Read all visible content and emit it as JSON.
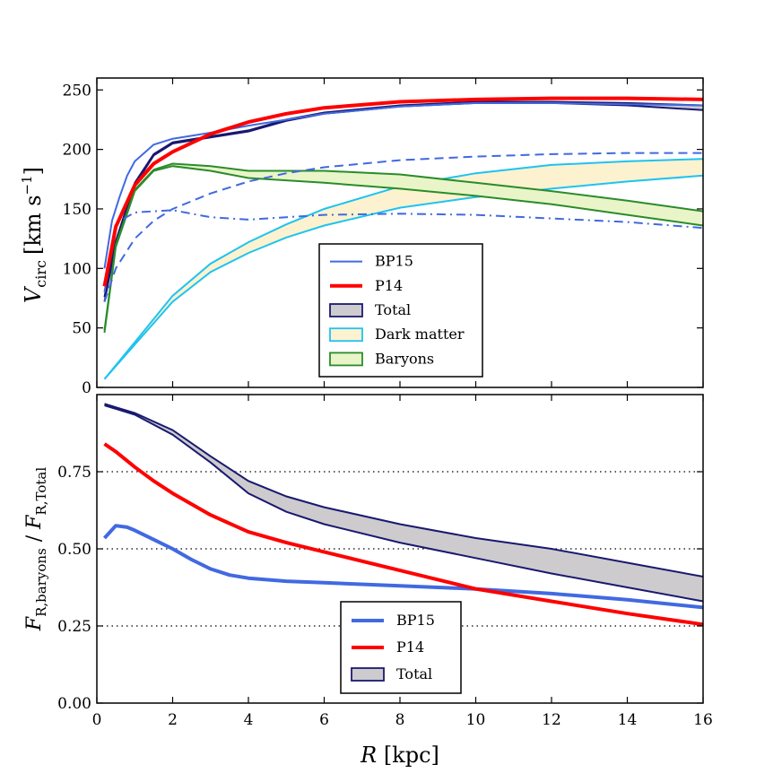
{
  "chart_data": [
    {
      "type": "line",
      "panel": "top",
      "ylabel": "V_circ [km s^-1]",
      "ylabel_main": "V",
      "ylabel_sub": "circ",
      "ylabel_units": "[km s",
      "ylabel_exp": "−1",
      "ylabel_close": "]",
      "xlim": [
        0,
        16
      ],
      "ylim": [
        0,
        260
      ],
      "xticks": [
        0,
        2,
        4,
        6,
        8,
        10,
        12,
        14,
        16
      ],
      "yticks": [
        0,
        50,
        100,
        150,
        200,
        250
      ],
      "ytick_labels": [
        "0",
        "50",
        "100",
        "150",
        "200",
        "250"
      ],
      "legend": {
        "position": "lower-center",
        "entries": [
          {
            "label": "BP15",
            "kind": "line",
            "color": "#4169e1"
          },
          {
            "label": "P14",
            "kind": "line",
            "color": "#ff0000"
          },
          {
            "label": "Total",
            "kind": "band",
            "edge": "#191970",
            "fill": "#cdcbcd"
          },
          {
            "label": "Dark matter",
            "kind": "band",
            "edge": "#1ec3f0",
            "fill": "#fdf2cf"
          },
          {
            "label": "Baryons",
            "kind": "band",
            "edge": "#2a8c2a",
            "fill": "#e9f5c9"
          }
        ]
      },
      "series": [
        {
          "name": "Total band",
          "kind": "band",
          "edge": "#191970",
          "fill": "#cdcbcd",
          "x": [
            0.2,
            0.5,
            1,
            1.5,
            2,
            3,
            4,
            5,
            6,
            8,
            10,
            12,
            14,
            16
          ],
          "lower": [
            72,
            120,
            170,
            195,
            205,
            210,
            215,
            224,
            230,
            236,
            239,
            239,
            237,
            233
          ],
          "upper": [
            76,
            123,
            172,
            196,
            206,
            211,
            216,
            225,
            231,
            237,
            240,
            240,
            239,
            237
          ]
        },
        {
          "name": "Dark matter band",
          "kind": "band",
          "edge": "#1ec3f0",
          "fill": "#fdf2cf",
          "x": [
            0.2,
            1,
            2,
            3,
            4,
            5,
            6,
            8,
            10,
            12,
            14,
            16
          ],
          "lower": [
            7,
            36,
            72,
            97,
            113,
            126,
            136,
            151,
            160,
            167,
            173,
            178
          ],
          "upper": [
            7,
            38,
            77,
            104,
            122,
            137,
            150,
            169,
            180,
            187,
            190,
            192
          ]
        },
        {
          "name": "Baryons band",
          "kind": "band",
          "edge": "#2a8c2a",
          "fill": "#e9f5c9",
          "x": [
            0.2,
            0.5,
            1,
            1.5,
            2,
            3,
            4,
            5,
            6,
            8,
            10,
            12,
            14,
            16
          ],
          "lower": [
            46,
            118,
            165,
            182,
            186,
            182,
            176,
            174,
            172,
            167,
            161,
            154,
            145,
            136
          ],
          "upper": [
            48,
            120,
            166,
            183,
            188,
            186,
            182,
            182,
            182,
            179,
            172,
            165,
            157,
            148
          ]
        },
        {
          "name": "BP15 total",
          "kind": "line",
          "style": "solid",
          "width": 2,
          "color": "#4169e1",
          "x": [
            0.2,
            0.4,
            0.6,
            0.8,
            1,
            1.5,
            2,
            3,
            4,
            6,
            8,
            10,
            12,
            14,
            16
          ],
          "y": [
            100,
            140,
            160,
            178,
            190,
            204,
            209,
            214,
            220,
            230,
            236,
            239,
            239,
            238,
            237
          ]
        },
        {
          "name": "BP15 dark matter",
          "kind": "line",
          "style": "dashed",
          "width": 2,
          "color": "#4169e1",
          "x": [
            0.2,
            0.5,
            1,
            1.5,
            2,
            3,
            4,
            5,
            6,
            8,
            10,
            12,
            14,
            16
          ],
          "y": [
            72,
            100,
            125,
            140,
            150,
            163,
            173,
            180,
            185,
            191,
            194,
            196,
            197,
            197
          ]
        },
        {
          "name": "BP15 baryons",
          "kind": "line",
          "style": "dashdot",
          "width": 2,
          "color": "#4169e1",
          "x": [
            0.2,
            0.5,
            1,
            1.5,
            2,
            2.5,
            3,
            4,
            5,
            6,
            8,
            10,
            12,
            14,
            16
          ],
          "y": [
            80,
            138,
            147,
            148,
            149,
            146,
            143,
            141,
            143,
            145,
            146,
            145,
            142,
            139,
            134
          ]
        },
        {
          "name": "P14 total",
          "kind": "line",
          "style": "solid",
          "width": 4,
          "color": "#ff0000",
          "x": [
            0.2,
            0.5,
            1,
            1.5,
            2,
            3,
            4,
            5,
            6,
            8,
            10,
            12,
            14,
            16
          ],
          "y": [
            85,
            135,
            170,
            188,
            198,
            213,
            223,
            230,
            235,
            240,
            242,
            243,
            243,
            242
          ]
        }
      ]
    },
    {
      "type": "line",
      "panel": "bottom",
      "ylabel": "F_R,baryons / F_R,Total",
      "ylabel_a": "F",
      "ylabel_a_sub": "R,baryons",
      "ylabel_sep": " / ",
      "ylabel_b": "F",
      "ylabel_b_sub": "R,Total",
      "xlabel": "R [kpc]",
      "xlabel_var": "R",
      "xlabel_units": " [kpc]",
      "xlim": [
        0,
        16
      ],
      "ylim": [
        0,
        1
      ],
      "xticks": [
        0,
        2,
        4,
        6,
        8,
        10,
        12,
        14,
        16
      ],
      "xtick_labels": [
        "0",
        "2",
        "4",
        "6",
        "8",
        "10",
        "12",
        "14",
        "16"
      ],
      "yticks": [
        0,
        0.25,
        0.5,
        0.75
      ],
      "ytick_labels": [
        "0.00",
        "0.25",
        "0.50",
        "0.75"
      ],
      "hlines": [
        0.25,
        0.5,
        0.75
      ],
      "legend": {
        "position": "lower-center",
        "entries": [
          {
            "label": "BP15",
            "kind": "line",
            "color": "#4169e1"
          },
          {
            "label": "P14",
            "kind": "line",
            "color": "#ff0000"
          },
          {
            "label": "Total",
            "kind": "band",
            "edge": "#191970",
            "fill": "#cdcbcd"
          }
        ]
      },
      "series": [
        {
          "name": "Total band",
          "kind": "band",
          "edge": "#191970",
          "fill": "#cdcbcd",
          "x": [
            0.2,
            1,
            2,
            3,
            4,
            5,
            6,
            8,
            10,
            12,
            14,
            16
          ],
          "lower": [
            0.965,
            0.935,
            0.87,
            0.78,
            0.68,
            0.62,
            0.58,
            0.52,
            0.47,
            0.42,
            0.375,
            0.33
          ],
          "upper": [
            0.97,
            0.94,
            0.885,
            0.8,
            0.72,
            0.67,
            0.635,
            0.58,
            0.535,
            0.5,
            0.455,
            0.41
          ]
        },
        {
          "name": "BP15",
          "kind": "line",
          "style": "solid",
          "width": 4,
          "color": "#4169e1",
          "x": [
            0.2,
            0.5,
            0.8,
            1,
            1.5,
            2,
            2.5,
            3,
            3.5,
            4,
            5,
            6,
            8,
            10,
            12,
            14,
            16
          ],
          "y": [
            0.535,
            0.575,
            0.57,
            0.56,
            0.53,
            0.5,
            0.465,
            0.435,
            0.415,
            0.405,
            0.395,
            0.39,
            0.38,
            0.37,
            0.355,
            0.335,
            0.31
          ]
        },
        {
          "name": "P14",
          "kind": "line",
          "style": "solid",
          "width": 4,
          "color": "#ff0000",
          "x": [
            0.2,
            0.5,
            1,
            1.5,
            2,
            3,
            4,
            5,
            6,
            8,
            10,
            12,
            14,
            16
          ],
          "y": [
            0.84,
            0.815,
            0.765,
            0.72,
            0.68,
            0.61,
            0.555,
            0.52,
            0.49,
            0.43,
            0.37,
            0.33,
            0.29,
            0.255
          ]
        }
      ]
    }
  ]
}
